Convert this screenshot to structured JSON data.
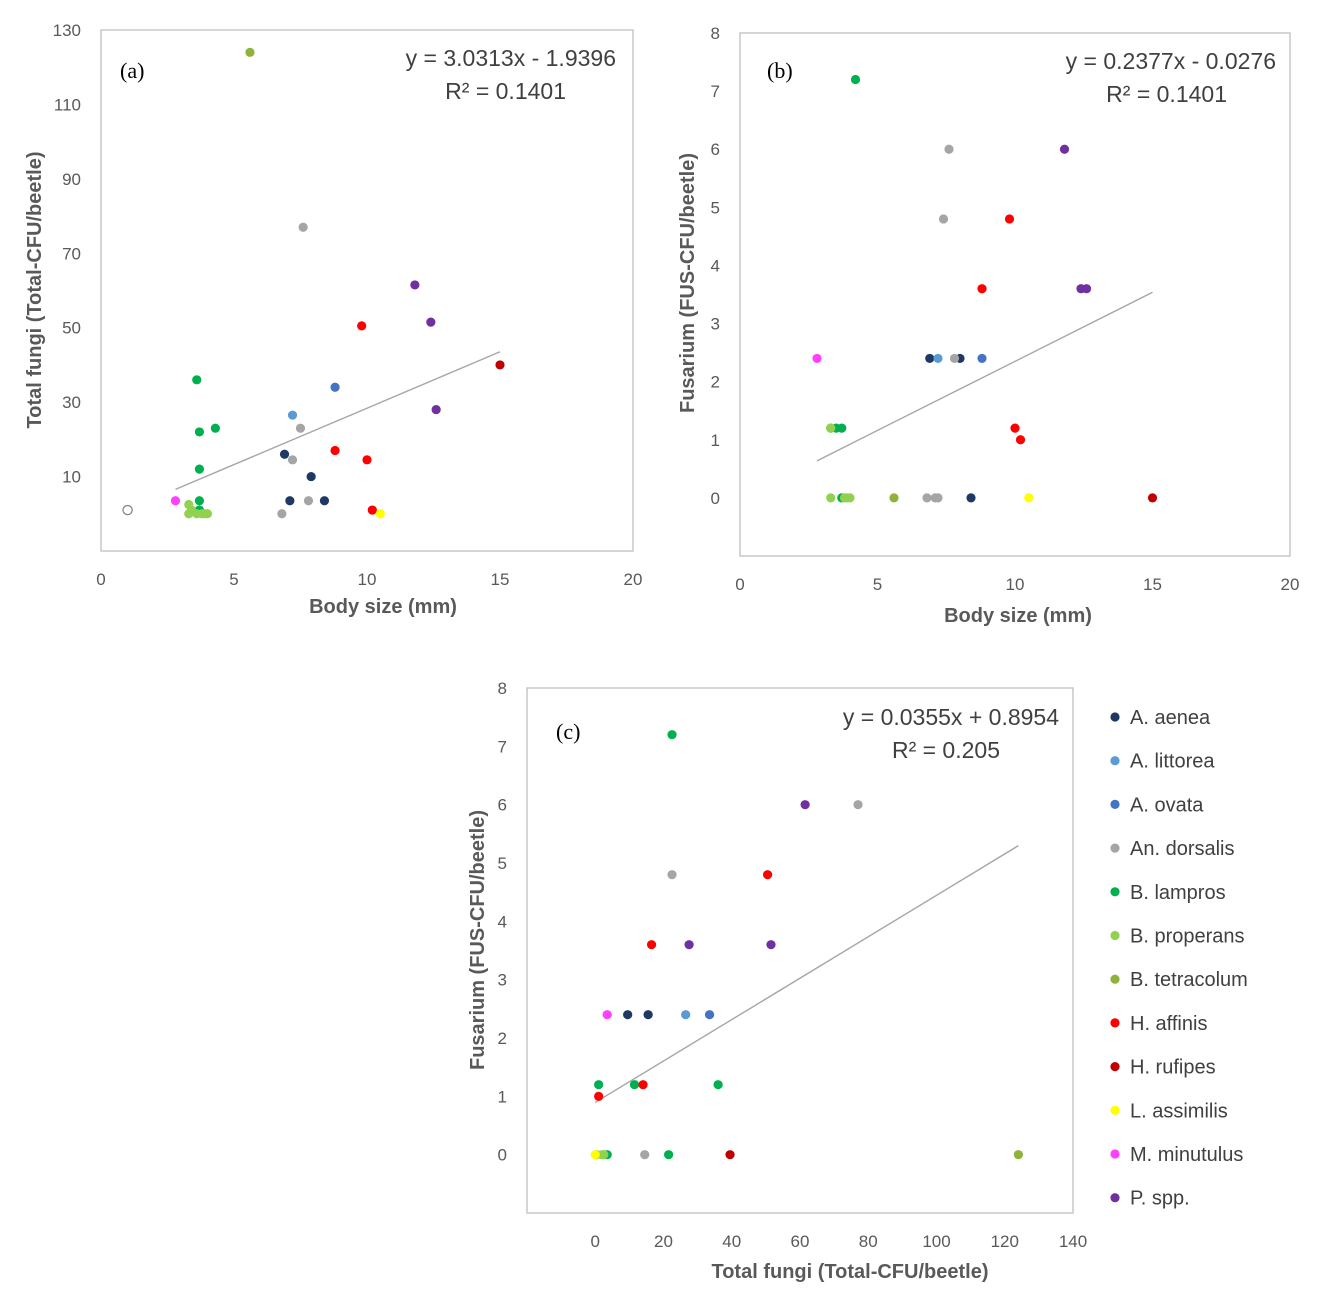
{
  "series_colors": {
    "A. aenea": "#1f3864",
    "A. littorea": "#5b9bd5",
    "A. ovata": "#4472c4",
    "An. dorsalis": "#a5a5a5",
    "B. lampros": "#00b050",
    "B. properans": "#92d050",
    "B. tetracolum": "#8db33a",
    "H. affinis": "#ff0000",
    "H. rufipes": "#c00000",
    "L. assimilis": "#ffff00",
    "M. minutulus": "#ff40ff",
    "P. spp.": "#7030a0"
  },
  "legend": {
    "items": [
      "A.  aenea",
      "A. littorea",
      "A. ovata",
      "An. dorsalis",
      "B. lampros",
      "B. properans",
      "B. tetracolum",
      "H. affinis",
      "H. rufipes",
      "L. assimilis",
      "M. minutulus",
      "P. spp."
    ]
  },
  "chart_data": [
    {
      "type": "scatter",
      "panel_label": "(a)",
      "xlabel": "Body size (mm)",
      "ylabel": "Total fungi (Total-CFU/beetle)",
      "xlim": [
        0,
        20
      ],
      "ylim": [
        -10,
        130
      ],
      "xticks": [
        "0",
        "5",
        "10",
        "15",
        "20"
      ],
      "yticks": [
        {
          "v": 10,
          "t": "10"
        },
        {
          "v": 30,
          "t": "30"
        },
        {
          "v": 50,
          "t": "50"
        },
        {
          "v": 70,
          "t": "70"
        },
        {
          "v": 90,
          "t": "90"
        },
        {
          "v": 110,
          "t": "110"
        },
        {
          "v": 130,
          "t": "130"
        }
      ],
      "equation": "y = 3.0313x - 1.9396",
      "r_squared": "R² = 0.1401",
      "trendline": {
        "slope": 3.0313,
        "intercept": -1.9396,
        "x_range": [
          2.8,
          15
        ]
      },
      "outlier_open": {
        "x": 1.0,
        "y": 1.0
      },
      "series": [
        {
          "name": "A. aenea",
          "points": [
            [
              6.9,
              16
            ],
            [
              7.1,
              3.5
            ],
            [
              7.9,
              10
            ],
            [
              8.4,
              3.5
            ]
          ]
        },
        {
          "name": "A. littorea",
          "points": [
            [
              7.2,
              26.5
            ]
          ]
        },
        {
          "name": "A. ovata",
          "points": [
            [
              8.8,
              34
            ]
          ]
        },
        {
          "name": "An. dorsalis",
          "points": [
            [
              7.6,
              77
            ],
            [
              7.5,
              23
            ],
            [
              7.2,
              14.5
            ],
            [
              6.8,
              0
            ],
            [
              7.8,
              3.5
            ]
          ]
        },
        {
          "name": "B. lampros",
          "points": [
            [
              3.6,
              36
            ],
            [
              4.3,
              23
            ],
            [
              3.7,
              22
            ],
            [
              3.7,
              12
            ],
            [
              3.7,
              3.5
            ],
            [
              3.7,
              1
            ]
          ]
        },
        {
          "name": "B. properans",
          "points": [
            [
              3.3,
              2.5
            ],
            [
              3.4,
              1
            ],
            [
              3.3,
              0
            ],
            [
              3.6,
              0
            ],
            [
              3.8,
              0
            ],
            [
              3.9,
              0
            ],
            [
              4.0,
              0
            ]
          ]
        },
        {
          "name": "B. tetracolum",
          "points": [
            [
              5.6,
              124
            ]
          ]
        },
        {
          "name": "H. affinis",
          "points": [
            [
              9.8,
              50.5
            ],
            [
              8.8,
              17
            ],
            [
              10.0,
              14.5
            ],
            [
              10.2,
              1
            ]
          ]
        },
        {
          "name": "H. rufipes",
          "points": [
            [
              15.0,
              40
            ]
          ]
        },
        {
          "name": "L. assimilis",
          "points": [
            [
              10.5,
              0
            ]
          ]
        },
        {
          "name": "M. minutulus",
          "points": [
            [
              2.8,
              3.5
            ]
          ]
        },
        {
          "name": "P. spp.",
          "points": [
            [
              11.8,
              61.5
            ],
            [
              12.4,
              51.5
            ],
            [
              12.6,
              28
            ]
          ]
        }
      ]
    },
    {
      "type": "scatter",
      "panel_label": "(b)",
      "xlabel": "Body size (mm)",
      "ylabel": "Fusarium (FUS-CFU/beetle)",
      "xlim": [
        0,
        20
      ],
      "ylim": [
        -1,
        8
      ],
      "xticks": [
        "0",
        "5",
        "10",
        "15",
        "20"
      ],
      "yticks": [
        {
          "v": 0,
          "t": "0"
        },
        {
          "v": 1,
          "t": "1"
        },
        {
          "v": 2,
          "t": "2"
        },
        {
          "v": 3,
          "t": "3"
        },
        {
          "v": 4,
          "t": "4"
        },
        {
          "v": 5,
          "t": "5"
        },
        {
          "v": 6,
          "t": "6"
        },
        {
          "v": 7,
          "t": "7"
        },
        {
          "v": 8,
          "t": "8"
        }
      ],
      "equation": "y = 0.2377x - 0.0276",
      "r_squared": "R² = 0.1401",
      "trendline": {
        "slope": 0.2377,
        "intercept": -0.0276,
        "x_range": [
          2.8,
          15
        ]
      },
      "series": [
        {
          "name": "A. aenea",
          "points": [
            [
              6.9,
              2.4
            ],
            [
              8.0,
              2.4
            ],
            [
              8.4,
              0
            ]
          ]
        },
        {
          "name": "A. littorea",
          "points": [
            [
              7.2,
              2.4
            ]
          ]
        },
        {
          "name": "A. ovata",
          "points": [
            [
              8.8,
              2.4
            ]
          ]
        },
        {
          "name": "An. dorsalis",
          "points": [
            [
              7.6,
              6.0
            ],
            [
              7.4,
              4.8
            ],
            [
              7.8,
              2.4
            ],
            [
              6.8,
              0
            ],
            [
              7.1,
              0
            ],
            [
              7.2,
              0
            ]
          ]
        },
        {
          "name": "B. lampros",
          "points": [
            [
              4.2,
              7.2
            ],
            [
              3.3,
              1.2
            ],
            [
              3.5,
              1.2
            ],
            [
              3.7,
              1.2
            ],
            [
              3.7,
              0
            ]
          ]
        },
        {
          "name": "B. properans",
          "points": [
            [
              3.3,
              1.2
            ],
            [
              3.3,
              0
            ],
            [
              3.8,
              0
            ],
            [
              3.9,
              0
            ],
            [
              4.0,
              0
            ]
          ]
        },
        {
          "name": "B. tetracolum",
          "points": [
            [
              5.6,
              0
            ]
          ]
        },
        {
          "name": "H. affinis",
          "points": [
            [
              9.8,
              4.8
            ],
            [
              8.8,
              3.6
            ],
            [
              10.0,
              1.2
            ],
            [
              10.2,
              1.0
            ]
          ]
        },
        {
          "name": "H. rufipes",
          "points": [
            [
              15.0,
              0
            ]
          ]
        },
        {
          "name": "L. assimilis",
          "points": [
            [
              10.5,
              0
            ]
          ]
        },
        {
          "name": "M. minutulus",
          "points": [
            [
              2.8,
              2.4
            ]
          ]
        },
        {
          "name": "P. spp.",
          "points": [
            [
              11.8,
              6.0
            ],
            [
              12.4,
              3.6
            ],
            [
              12.6,
              3.6
            ]
          ]
        }
      ]
    },
    {
      "type": "scatter",
      "panel_label": "(c)",
      "xlabel": "Total fungi (Total-CFU/beetle)",
      "ylabel": "Fusarium (FUS-CFU/beetle)",
      "xlim": [
        -20,
        140
      ],
      "ylim": [
        -1,
        8
      ],
      "xticks": [
        "0",
        "20",
        "40",
        "60",
        "80",
        "100",
        "120",
        "140"
      ],
      "yticks": [
        {
          "v": 0,
          "t": "0"
        },
        {
          "v": 1,
          "t": "1"
        },
        {
          "v": 2,
          "t": "2"
        },
        {
          "v": 3,
          "t": "3"
        },
        {
          "v": 4,
          "t": "4"
        },
        {
          "v": 5,
          "t": "5"
        },
        {
          "v": 6,
          "t": "6"
        },
        {
          "v": 7,
          "t": "7"
        },
        {
          "v": 8,
          "t": "8"
        }
      ],
      "equation": "y = 0.0355x + 0.8954",
      "r_squared": "R² = 0.205",
      "trendline": {
        "slope": 0.0355,
        "intercept": 0.8954,
        "x_range": [
          0,
          124
        ]
      },
      "series": [
        {
          "name": "A. aenea",
          "points": [
            [
              9.5,
              2.4
            ],
            [
              15.5,
              2.4
            ]
          ]
        },
        {
          "name": "A. littorea",
          "points": [
            [
              26.5,
              2.4
            ]
          ]
        },
        {
          "name": "A. ovata",
          "points": [
            [
              33.5,
              2.4
            ]
          ]
        },
        {
          "name": "An. dorsalis",
          "points": [
            [
              77,
              6.0
            ],
            [
              22.5,
              4.8
            ],
            [
              14.5,
              0
            ]
          ]
        },
        {
          "name": "B. lampros",
          "points": [
            [
              22.5,
              7.2
            ],
            [
              1.0,
              1.2
            ],
            [
              11.5,
              1.2
            ],
            [
              36,
              1.2
            ],
            [
              21.5,
              0
            ],
            [
              3.5,
              0
            ]
          ]
        },
        {
          "name": "B. properans",
          "points": [
            [
              0.5,
              0
            ],
            [
              2.0,
              0
            ],
            [
              2.5,
              0
            ]
          ]
        },
        {
          "name": "B. tetracolum",
          "points": [
            [
              124,
              0
            ]
          ]
        },
        {
          "name": "H. affinis",
          "points": [
            [
              50.5,
              4.8
            ],
            [
              16.5,
              3.6
            ],
            [
              14,
              1.2
            ],
            [
              1.0,
              1.0
            ]
          ]
        },
        {
          "name": "H. rufipes",
          "points": [
            [
              39.5,
              0
            ]
          ]
        },
        {
          "name": "L. assimilis",
          "points": [
            [
              0,
              0
            ]
          ]
        },
        {
          "name": "M. minutulus",
          "points": [
            [
              3.5,
              2.4
            ]
          ]
        },
        {
          "name": "P. spp.",
          "points": [
            [
              61.5,
              6.0
            ],
            [
              27.5,
              3.6
            ],
            [
              51.5,
              3.6
            ]
          ]
        }
      ]
    }
  ]
}
